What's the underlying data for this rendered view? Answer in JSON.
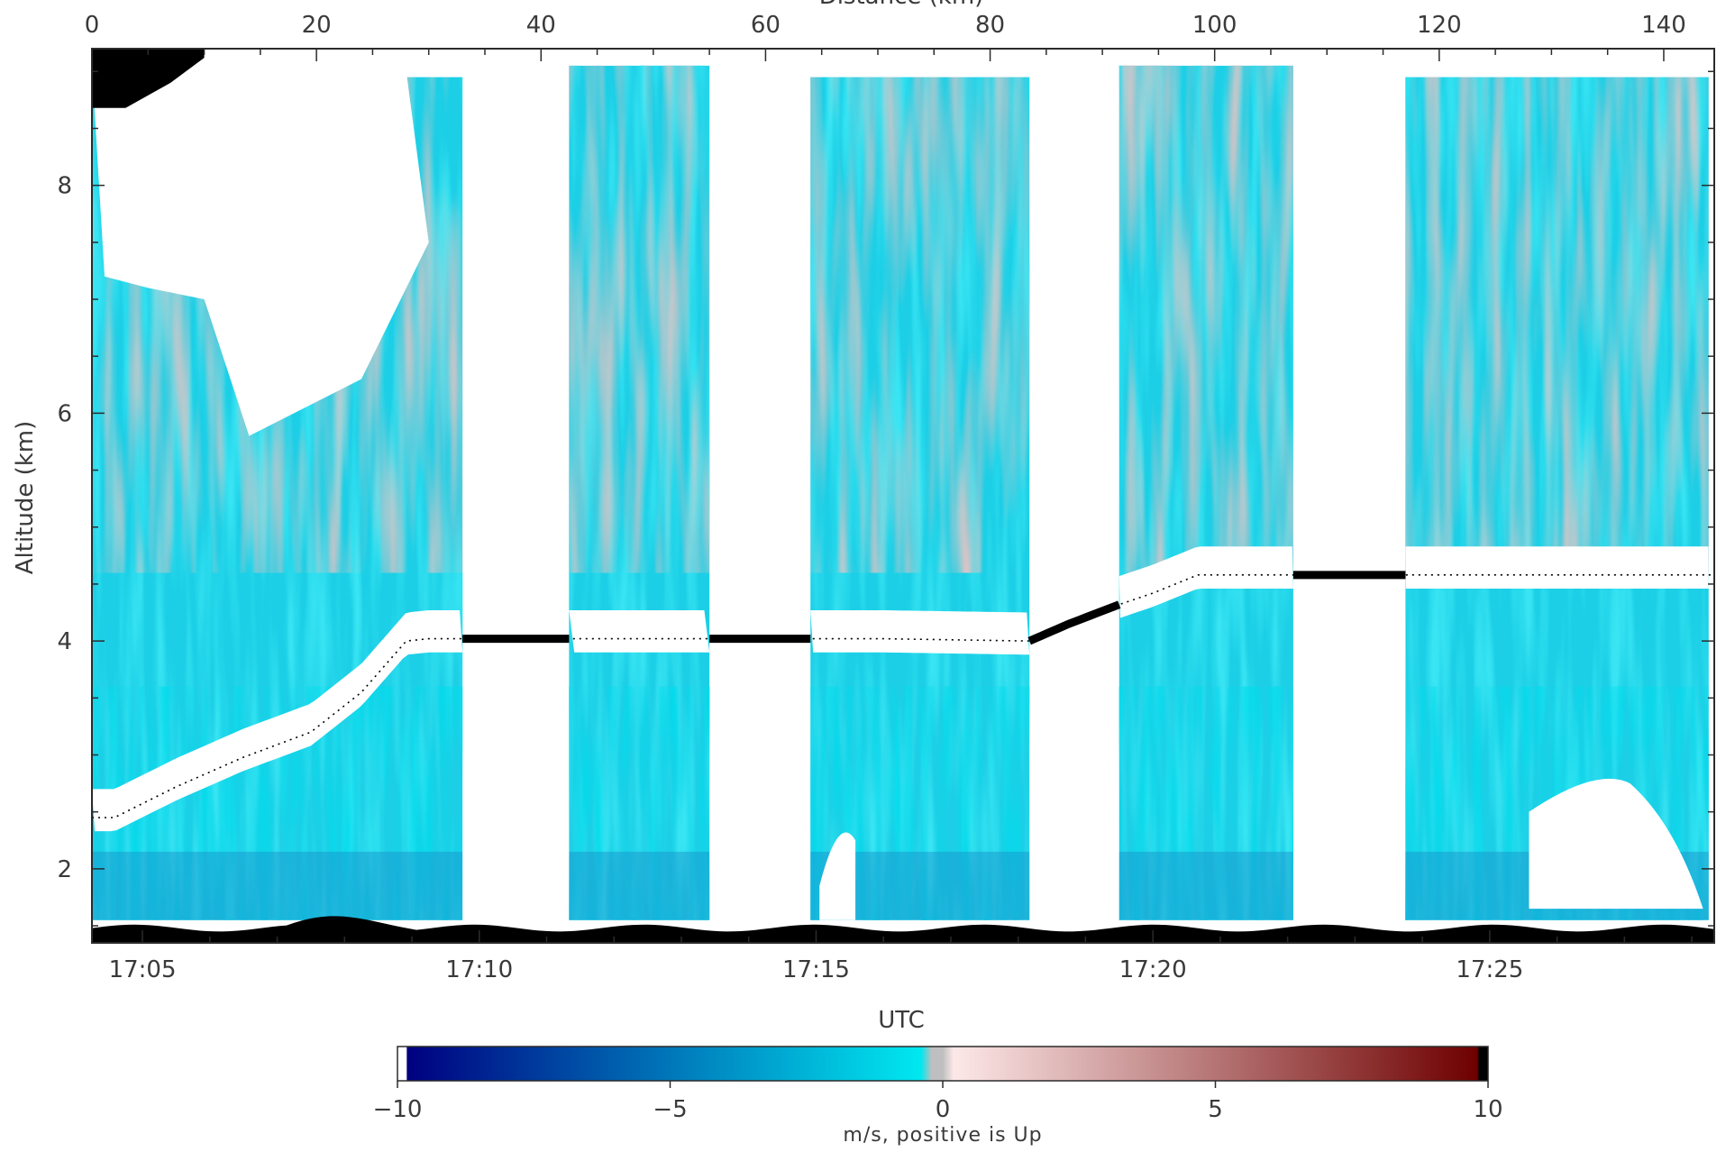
{
  "chart_data": {
    "type": "heatmap",
    "title": "",
    "xlabel": "UTC",
    "x2label": "Distance (km)",
    "ylabel": "Altitude (km)",
    "x_time_ticks": [
      "17:05",
      "17:10",
      "17:15",
      "17:20",
      "17:25"
    ],
    "x_time_range": [
      "17:04:15",
      "17:28:20"
    ],
    "x2_ticks": [
      0,
      20,
      40,
      60,
      80,
      100,
      120,
      140
    ],
    "x2_range": [
      0,
      144.5
    ],
    "y_ticks": [
      2,
      4,
      6,
      8
    ],
    "ylim": [
      1.35,
      9.2
    ],
    "colorbar": {
      "label": "m/s, positive is Up",
      "ticks": [
        -10,
        -5,
        0,
        5,
        10
      ],
      "range": [
        -10,
        10
      ],
      "colors": {
        "min": "#000080",
        "mid_low": "#00e8f0",
        "zero": "#bfbfbf",
        "mid_high": "#fde8e8",
        "max": "#6e0000",
        "underflow": "#ffffff",
        "overflow": "#000000"
      }
    },
    "data_segments_utc": [
      [
        "17:04:15",
        "17:09:45"
      ],
      [
        "17:11:20",
        "17:13:25"
      ],
      [
        "17:14:55",
        "17:18:10"
      ],
      [
        "17:19:30",
        "17:22:05"
      ],
      [
        "17:23:45",
        "17:28:15"
      ]
    ],
    "aircraft_altitude": {
      "times": [
        "17:04:15",
        "17:04:35",
        "17:05:30",
        "17:06:30",
        "17:07:30",
        "17:08:15",
        "17:08:55",
        "17:09:15",
        "17:10:00",
        "17:16:00",
        "17:18:10",
        "17:18:45",
        "17:19:30",
        "17:20:00",
        "17:20:40",
        "17:21:30",
        "17:28:20"
      ],
      "altitude_km": [
        2.45,
        2.45,
        2.72,
        2.98,
        3.2,
        3.55,
        4.0,
        4.02,
        4.02,
        4.02,
        4.0,
        4.15,
        4.32,
        4.42,
        4.58,
        4.58,
        4.58
      ]
    }
  }
}
